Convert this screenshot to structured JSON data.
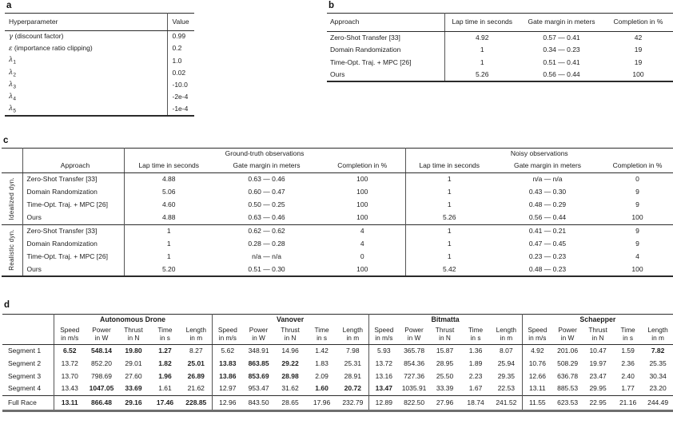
{
  "panel_a": {
    "label": "a",
    "col_headers": [
      "Hyperparameter",
      "Value"
    ],
    "rows": [
      {
        "symbol": "γ",
        "sub": "",
        "desc": "(discount factor)",
        "value": "0.99"
      },
      {
        "symbol": "ε",
        "sub": "",
        "desc": "(importance ratio clipping)",
        "value": "0.2"
      },
      {
        "symbol": "λ",
        "sub": "1",
        "desc": "",
        "value": "1.0"
      },
      {
        "symbol": "λ",
        "sub": "2",
        "desc": "",
        "value": "0.02"
      },
      {
        "symbol": "λ",
        "sub": "3",
        "desc": "",
        "value": "-10.0"
      },
      {
        "symbol": "λ",
        "sub": "4",
        "desc": "",
        "value": "-2e-4"
      },
      {
        "symbol": "λ",
        "sub": "5",
        "desc": "",
        "value": "-1e-4"
      }
    ]
  },
  "panel_b": {
    "label": "b",
    "col_headers": [
      "Approach",
      "Lap time in seconds",
      "Gate margin in meters",
      "Completion in %"
    ],
    "rows": [
      {
        "approach": "Zero-Shot Transfer [33]",
        "lap_time": "4.92",
        "gate_margin": "0.57 — 0.41",
        "completion": "42"
      },
      {
        "approach": "Domain Randomization",
        "lap_time": "1",
        "gate_margin": "0.34 — 0.23",
        "completion": "19"
      },
      {
        "approach": "Time-Opt. Traj. + MPC [26]",
        "lap_time": "1",
        "gate_margin": "0.51 — 0.41",
        "completion": "19"
      },
      {
        "approach": "Ours",
        "lap_time": "5.26",
        "gate_margin": "0.56 — 0.44",
        "completion": "100"
      }
    ]
  },
  "panel_c": {
    "label": "c",
    "approach_header": "Approach",
    "group_headers": [
      "Ground-truth observations",
      "Noisy observations"
    ],
    "sub_headers": [
      "Lap time in seconds",
      "Gate margin in meters",
      "Completion in %"
    ],
    "sections": [
      {
        "name": "Idealized dyn.",
        "rows": [
          {
            "approach": "Zero-Shot Transfer [33]",
            "gt": [
              "4.88",
              "0.63 — 0.46",
              "100"
            ],
            "noisy": [
              "1",
              "n/a — n/a",
              "0"
            ]
          },
          {
            "approach": "Domain Randomization",
            "gt": [
              "5.06",
              "0.60 — 0.47",
              "100"
            ],
            "noisy": [
              "1",
              "0.43 — 0.30",
              "9"
            ]
          },
          {
            "approach": "Time-Opt. Traj. + MPC [26]",
            "gt": [
              "4.60",
              "0.50 — 0.25",
              "100"
            ],
            "noisy": [
              "1",
              "0.48 — 0.29",
              "9"
            ]
          },
          {
            "approach": "Ours",
            "gt": [
              "4.88",
              "0.63 — 0.46",
              "100"
            ],
            "noisy": [
              "5.26",
              "0.56 — 0.44",
              "100"
            ]
          }
        ]
      },
      {
        "name": "Realistic dyn.",
        "rows": [
          {
            "approach": "Zero-Shot Transfer [33]",
            "gt": [
              "1",
              "0.62 — 0.62",
              "4"
            ],
            "noisy": [
              "1",
              "0.41 — 0.21",
              "9"
            ]
          },
          {
            "approach": "Domain Randomization",
            "gt": [
              "1",
              "0.28 — 0.28",
              "4"
            ],
            "noisy": [
              "1",
              "0.47 — 0.45",
              "9"
            ]
          },
          {
            "approach": "Time-Opt. Traj. + MPC [26]",
            "gt": [
              "1",
              "n/a — n/a",
              "0"
            ],
            "noisy": [
              "1",
              "0.23 — 0.23",
              "4"
            ]
          },
          {
            "approach": "Ours",
            "gt": [
              "5.20",
              "0.51 — 0.30",
              "100"
            ],
            "noisy": [
              "5.42",
              "0.48 — 0.23",
              "100"
            ]
          }
        ]
      }
    ]
  },
  "panel_d": {
    "label": "d",
    "group_headers": [
      "Autonomous Drone",
      "Vanover",
      "Bitmatta",
      "Schaepper"
    ],
    "sub_headers": [
      [
        "Speed",
        "in m/s"
      ],
      [
        "Power",
        "in W"
      ],
      [
        "Thrust",
        "in N"
      ],
      [
        "Time",
        "in s"
      ],
      [
        "Length",
        "in m"
      ]
    ],
    "rows": [
      {
        "label": "Segment 1",
        "cells": [
          {
            "v": "6.52",
            "b": true
          },
          {
            "v": "548.14",
            "b": true
          },
          {
            "v": "19.80",
            "b": true
          },
          {
            "v": "1.27",
            "b": true
          },
          {
            "v": "8.27"
          },
          {
            "v": "5.62"
          },
          {
            "v": "348.91"
          },
          {
            "v": "14.96"
          },
          {
            "v": "1.42"
          },
          {
            "v": "7.98"
          },
          {
            "v": "5.93"
          },
          {
            "v": "365.78"
          },
          {
            "v": "15.87"
          },
          {
            "v": "1.36"
          },
          {
            "v": "8.07"
          },
          {
            "v": "4.92"
          },
          {
            "v": "201.06"
          },
          {
            "v": "10.47"
          },
          {
            "v": "1.59"
          },
          {
            "v": "7.82",
            "b": true
          }
        ]
      },
      {
        "label": "Segment 2",
        "cells": [
          {
            "v": "13.72"
          },
          {
            "v": "852.20"
          },
          {
            "v": "29.01"
          },
          {
            "v": "1.82",
            "b": true
          },
          {
            "v": "25.01",
            "b": true
          },
          {
            "v": "13.83",
            "b": true
          },
          {
            "v": "863.85",
            "b": true
          },
          {
            "v": "29.22",
            "b": true
          },
          {
            "v": "1.83"
          },
          {
            "v": "25.31"
          },
          {
            "v": "13.72"
          },
          {
            "v": "854.36"
          },
          {
            "v": "28.95"
          },
          {
            "v": "1.89"
          },
          {
            "v": "25.94"
          },
          {
            "v": "10.76"
          },
          {
            "v": "508.29"
          },
          {
            "v": "19.97"
          },
          {
            "v": "2.36"
          },
          {
            "v": "25.35"
          }
        ]
      },
      {
        "label": "Segment 3",
        "cells": [
          {
            "v": "13.70"
          },
          {
            "v": "798.69"
          },
          {
            "v": "27.60"
          },
          {
            "v": "1.96",
            "b": true
          },
          {
            "v": "26.89",
            "b": true
          },
          {
            "v": "13.86",
            "b": true
          },
          {
            "v": "853.69",
            "b": true
          },
          {
            "v": "28.98",
            "b": true
          },
          {
            "v": "2.09"
          },
          {
            "v": "28.91"
          },
          {
            "v": "13.16"
          },
          {
            "v": "727.36"
          },
          {
            "v": "25.50"
          },
          {
            "v": "2.23"
          },
          {
            "v": "29.35"
          },
          {
            "v": "12.66"
          },
          {
            "v": "636.78"
          },
          {
            "v": "23.47"
          },
          {
            "v": "2.40"
          },
          {
            "v": "30.34"
          }
        ]
      },
      {
        "label": "Segment 4",
        "cells": [
          {
            "v": "13.43"
          },
          {
            "v": "1047.05",
            "b": true
          },
          {
            "v": "33.69",
            "b": true
          },
          {
            "v": "1.61"
          },
          {
            "v": "21.62"
          },
          {
            "v": "12.97"
          },
          {
            "v": "953.47"
          },
          {
            "v": "31.62"
          },
          {
            "v": "1.60",
            "b": true
          },
          {
            "v": "20.72",
            "b": true
          },
          {
            "v": "13.47",
            "b": true
          },
          {
            "v": "1035.91"
          },
          {
            "v": "33.39"
          },
          {
            "v": "1.67"
          },
          {
            "v": "22.53"
          },
          {
            "v": "13.11"
          },
          {
            "v": "885.53"
          },
          {
            "v": "29.95"
          },
          {
            "v": "1.77"
          },
          {
            "v": "23.20"
          }
        ]
      }
    ],
    "full_race": {
      "label": "Full Race",
      "cells": [
        {
          "v": "13.11",
          "b": true
        },
        {
          "v": "866.48",
          "b": true
        },
        {
          "v": "29.16",
          "b": true
        },
        {
          "v": "17.46",
          "b": true
        },
        {
          "v": "228.85",
          "b": true
        },
        {
          "v": "12.96"
        },
        {
          "v": "843.50"
        },
        {
          "v": "28.65"
        },
        {
          "v": "17.96"
        },
        {
          "v": "232.79"
        },
        {
          "v": "12.89"
        },
        {
          "v": "822.50"
        },
        {
          "v": "27.96"
        },
        {
          "v": "18.74"
        },
        {
          "v": "241.52"
        },
        {
          "v": "11.55"
        },
        {
          "v": "623.53"
        },
        {
          "v": "22.95"
        },
        {
          "v": "21.16"
        },
        {
          "v": "244.49"
        }
      ]
    }
  }
}
